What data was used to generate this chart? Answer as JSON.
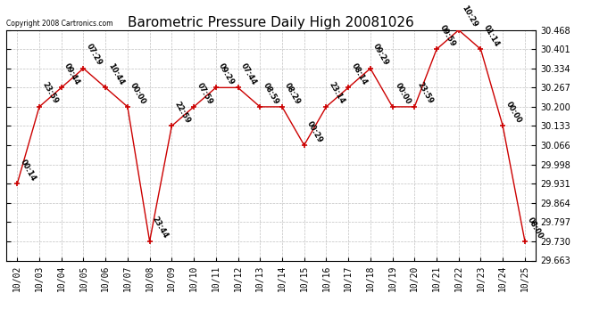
{
  "title": "Barometric Pressure Daily High 20081026",
  "copyright": "Copyright 2008 Cartronics.com",
  "x_labels": [
    "10/02",
    "10/03",
    "10/04",
    "10/05",
    "10/06",
    "10/07",
    "10/08",
    "10/09",
    "10/10",
    "10/11",
    "10/12",
    "10/13",
    "10/14",
    "10/15",
    "10/16",
    "10/17",
    "10/18",
    "10/19",
    "10/20",
    "10/21",
    "10/22",
    "10/23",
    "10/24",
    "10/25"
  ],
  "x_indices": [
    0,
    1,
    2,
    3,
    4,
    5,
    6,
    7,
    8,
    9,
    10,
    11,
    12,
    13,
    14,
    15,
    16,
    17,
    18,
    19,
    20,
    21,
    22,
    23
  ],
  "y_values": [
    29.931,
    30.2,
    30.267,
    30.334,
    30.267,
    30.2,
    29.73,
    30.133,
    30.2,
    30.267,
    30.267,
    30.2,
    30.2,
    30.066,
    30.2,
    30.267,
    30.334,
    30.2,
    30.2,
    30.401,
    30.468,
    30.401,
    30.133,
    29.73
  ],
  "point_labels": [
    "00:14",
    "23:59",
    "09:44",
    "07:29",
    "10:44",
    "00:00",
    "23:44",
    "22:59",
    "07:59",
    "09:29",
    "07:44",
    "08:59",
    "08:29",
    "00:29",
    "23:14",
    "08:14",
    "09:29",
    "00:00",
    "23:59",
    "09:59",
    "10:29",
    "01:14",
    "00:00",
    "08:00"
  ],
  "y_min": 29.663,
  "y_max": 30.468,
  "y_ticks": [
    29.663,
    29.73,
    29.797,
    29.864,
    29.931,
    29.998,
    30.066,
    30.133,
    30.2,
    30.267,
    30.334,
    30.401,
    30.468
  ],
  "line_color": "#cc0000",
  "marker_color": "#cc0000",
  "bg_color": "#ffffff",
  "grid_color": "#c0c0c0",
  "title_fontsize": 11,
  "tick_fontsize": 7,
  "point_label_fontsize": 6
}
